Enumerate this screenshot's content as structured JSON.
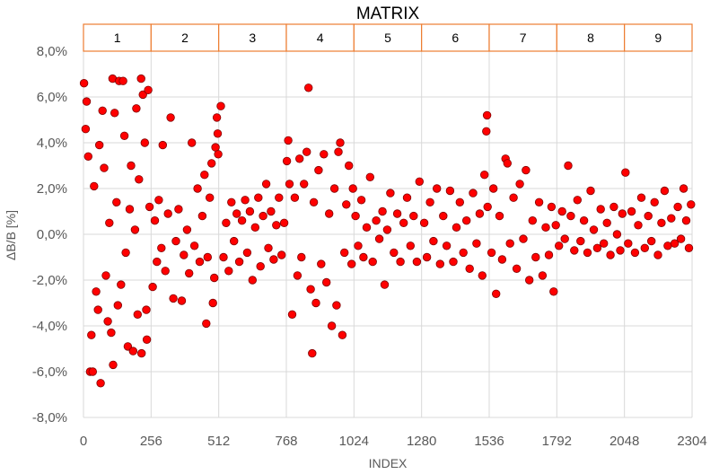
{
  "chart_data": {
    "type": "scatter",
    "title": "MATRIX",
    "xlabel": "INDEX",
    "ylabel": "ΔB/B [%]",
    "xlim": [
      0,
      2304
    ],
    "ylim": [
      -8,
      8
    ],
    "x_ticks": [
      0,
      256,
      512,
      768,
      1024,
      1280,
      1536,
      1792,
      2048,
      2304
    ],
    "x_tick_labels": [
      "0",
      "256",
      "512",
      "768",
      "1024",
      "1280",
      "1536",
      "1792",
      "2048",
      "2304"
    ],
    "y_ticks": [
      -8,
      -6,
      -4,
      -2,
      0,
      2,
      4,
      6,
      8
    ],
    "y_tick_labels": [
      "-8,0%",
      "-6,0%",
      "-4,0%",
      "-2,0%",
      "0,0%",
      "2,0%",
      "4,0%",
      "6,0%",
      "8,0%"
    ],
    "grid": true,
    "legend": "none",
    "segments": [
      {
        "label": "1",
        "x_start": 0,
        "x_end": 256
      },
      {
        "label": "2",
        "x_start": 256,
        "x_end": 512
      },
      {
        "label": "3",
        "x_start": 512,
        "x_end": 768
      },
      {
        "label": "4",
        "x_start": 768,
        "x_end": 1024
      },
      {
        "label": "5",
        "x_start": 1024,
        "x_end": 1280
      },
      {
        "label": "6",
        "x_start": 1280,
        "x_end": 1536
      },
      {
        "label": "7",
        "x_start": 1536,
        "x_end": 1792
      },
      {
        "label": "8",
        "x_start": 1792,
        "x_end": 2048
      },
      {
        "label": "9",
        "x_start": 2048,
        "x_end": 2304
      }
    ],
    "series": [
      {
        "marker_color": "#ff0000",
        "marker_edge_color": "#7f0000",
        "points": [
          [
            2,
            6.6
          ],
          [
            8,
            4.6
          ],
          [
            12,
            5.8
          ],
          [
            18,
            3.4
          ],
          [
            25,
            -6.0
          ],
          [
            30,
            -4.4
          ],
          [
            35,
            -6.0
          ],
          [
            40,
            2.1
          ],
          [
            48,
            -2.5
          ],
          [
            55,
            -3.3
          ],
          [
            60,
            3.9
          ],
          [
            65,
            -6.5
          ],
          [
            72,
            5.4
          ],
          [
            78,
            2.9
          ],
          [
            85,
            -1.8
          ],
          [
            92,
            -3.8
          ],
          [
            98,
            0.5
          ],
          [
            105,
            -4.3
          ],
          [
            110,
            6.8
          ],
          [
            112,
            -5.7
          ],
          [
            118,
            5.3
          ],
          [
            125,
            1.4
          ],
          [
            130,
            -3.1
          ],
          [
            135,
            6.7
          ],
          [
            142,
            -2.2
          ],
          [
            150,
            6.7
          ],
          [
            155,
            4.3
          ],
          [
            160,
            -0.8
          ],
          [
            168,
            -4.9
          ],
          [
            175,
            1.1
          ],
          [
            180,
            3.0
          ],
          [
            188,
            -5.1
          ],
          [
            195,
            0.2
          ],
          [
            200,
            5.5
          ],
          [
            205,
            -3.5
          ],
          [
            210,
            2.4
          ],
          [
            218,
            6.8
          ],
          [
            220,
            -5.2
          ],
          [
            225,
            6.1
          ],
          [
            232,
            4.0
          ],
          [
            238,
            -3.3
          ],
          [
            240,
            -4.6
          ],
          [
            245,
            6.3
          ],
          [
            250,
            1.2
          ],
          [
            262,
            -2.3
          ],
          [
            270,
            0.6
          ],
          [
            278,
            -1.2
          ],
          [
            285,
            1.5
          ],
          [
            295,
            -0.6
          ],
          [
            300,
            3.9
          ],
          [
            310,
            -1.6
          ],
          [
            320,
            0.9
          ],
          [
            330,
            5.1
          ],
          [
            340,
            -2.8
          ],
          [
            350,
            -0.3
          ],
          [
            360,
            1.1
          ],
          [
            372,
            -2.9
          ],
          [
            380,
            -0.9
          ],
          [
            392,
            0.2
          ],
          [
            400,
            -1.7
          ],
          [
            410,
            4.0
          ],
          [
            420,
            -0.5
          ],
          [
            432,
            2.0
          ],
          [
            440,
            -1.2
          ],
          [
            450,
            0.8
          ],
          [
            458,
            2.6
          ],
          [
            465,
            -3.9
          ],
          [
            470,
            -1.0
          ],
          [
            478,
            1.6
          ],
          [
            485,
            3.1
          ],
          [
            490,
            -3.0
          ],
          [
            495,
            -1.9
          ],
          [
            500,
            3.8
          ],
          [
            505,
            5.1
          ],
          [
            508,
            4.4
          ],
          [
            510,
            3.5
          ],
          [
            520,
            5.6
          ],
          [
            530,
            -1.0
          ],
          [
            540,
            0.5
          ],
          [
            550,
            -1.6
          ],
          [
            560,
            1.4
          ],
          [
            570,
            -0.3
          ],
          [
            580,
            0.9
          ],
          [
            590,
            -1.2
          ],
          [
            600,
            0.6
          ],
          [
            612,
            1.5
          ],
          [
            620,
            -0.8
          ],
          [
            630,
            1.0
          ],
          [
            640,
            -2.0
          ],
          [
            650,
            0.3
          ],
          [
            662,
            1.6
          ],
          [
            670,
            -1.4
          ],
          [
            680,
            0.8
          ],
          [
            692,
            2.2
          ],
          [
            700,
            -0.6
          ],
          [
            710,
            1.0
          ],
          [
            720,
            -1.1
          ],
          [
            730,
            0.4
          ],
          [
            740,
            1.6
          ],
          [
            750,
            -0.9
          ],
          [
            760,
            0.5
          ],
          [
            770,
            3.2
          ],
          [
            775,
            4.1
          ],
          [
            780,
            2.2
          ],
          [
            790,
            -3.5
          ],
          [
            800,
            1.6
          ],
          [
            810,
            -1.8
          ],
          [
            818,
            3.3
          ],
          [
            825,
            -1.0
          ],
          [
            835,
            2.2
          ],
          [
            845,
            3.6
          ],
          [
            852,
            6.4
          ],
          [
            860,
            -2.4
          ],
          [
            866,
            -5.2
          ],
          [
            872,
            1.4
          ],
          [
            880,
            -3.0
          ],
          [
            890,
            2.8
          ],
          [
            900,
            -1.3
          ],
          [
            910,
            3.5
          ],
          [
            920,
            -2.1
          ],
          [
            930,
            0.9
          ],
          [
            940,
            -4.0
          ],
          [
            950,
            2.0
          ],
          [
            958,
            -3.1
          ],
          [
            965,
            3.6
          ],
          [
            972,
            4.0
          ],
          [
            980,
            -4.4
          ],
          [
            988,
            -0.8
          ],
          [
            995,
            1.3
          ],
          [
            1005,
            3.0
          ],
          [
            1015,
            -1.3
          ],
          [
            1020,
            2.0
          ],
          [
            1030,
            0.8
          ],
          [
            1040,
            -0.5
          ],
          [
            1052,
            1.5
          ],
          [
            1060,
            -1.0
          ],
          [
            1072,
            0.3
          ],
          [
            1085,
            2.5
          ],
          [
            1095,
            -1.2
          ],
          [
            1108,
            0.6
          ],
          [
            1120,
            -0.2
          ],
          [
            1132,
            1.0
          ],
          [
            1140,
            -2.2
          ],
          [
            1150,
            0.2
          ],
          [
            1162,
            1.8
          ],
          [
            1175,
            -0.8
          ],
          [
            1188,
            0.9
          ],
          [
            1200,
            -1.2
          ],
          [
            1212,
            0.5
          ],
          [
            1225,
            1.6
          ],
          [
            1238,
            -0.5
          ],
          [
            1250,
            0.8
          ],
          [
            1262,
            -1.2
          ],
          [
            1272,
            2.3
          ],
          [
            1290,
            0.5
          ],
          [
            1300,
            -1.0
          ],
          [
            1312,
            1.4
          ],
          [
            1325,
            -0.3
          ],
          [
            1338,
            2.0
          ],
          [
            1350,
            -1.3
          ],
          [
            1362,
            0.8
          ],
          [
            1375,
            -0.5
          ],
          [
            1388,
            1.9
          ],
          [
            1400,
            -1.2
          ],
          [
            1412,
            0.3
          ],
          [
            1425,
            1.4
          ],
          [
            1438,
            -0.8
          ],
          [
            1450,
            0.6
          ],
          [
            1462,
            -1.5
          ],
          [
            1475,
            1.8
          ],
          [
            1488,
            -0.4
          ],
          [
            1500,
            0.9
          ],
          [
            1510,
            -1.8
          ],
          [
            1518,
            2.6
          ],
          [
            1525,
            4.5
          ],
          [
            1528,
            5.2
          ],
          [
            1530,
            1.2
          ],
          [
            1545,
            -0.8
          ],
          [
            1552,
            2.0
          ],
          [
            1562,
            -2.6
          ],
          [
            1575,
            0.8
          ],
          [
            1585,
            -1.1
          ],
          [
            1598,
            3.3
          ],
          [
            1605,
            3.1
          ],
          [
            1615,
            -0.4
          ],
          [
            1628,
            1.6
          ],
          [
            1640,
            -1.5
          ],
          [
            1652,
            2.2
          ],
          [
            1665,
            -0.2
          ],
          [
            1675,
            2.8
          ],
          [
            1688,
            -2.0
          ],
          [
            1700,
            0.6
          ],
          [
            1712,
            -1.0
          ],
          [
            1725,
            1.4
          ],
          [
            1738,
            -1.8
          ],
          [
            1750,
            0.3
          ],
          [
            1762,
            -0.9
          ],
          [
            1772,
            1.2
          ],
          [
            1780,
            -2.5
          ],
          [
            1788,
            0.4
          ],
          [
            1800,
            -0.5
          ],
          [
            1812,
            1.0
          ],
          [
            1822,
            -0.2
          ],
          [
            1835,
            3.0
          ],
          [
            1845,
            0.8
          ],
          [
            1858,
            -0.7
          ],
          [
            1870,
            1.5
          ],
          [
            1882,
            -0.3
          ],
          [
            1895,
            0.6
          ],
          [
            1908,
            -0.8
          ],
          [
            1920,
            1.9
          ],
          [
            1932,
            0.2
          ],
          [
            1945,
            -0.6
          ],
          [
            1958,
            1.1
          ],
          [
            1970,
            -0.4
          ],
          [
            1982,
            0.5
          ],
          [
            1995,
            -0.9
          ],
          [
            2008,
            1.2
          ],
          [
            2020,
            0.0
          ],
          [
            2032,
            -0.7
          ],
          [
            2040,
            0.9
          ],
          [
            2052,
            2.7
          ],
          [
            2062,
            -0.4
          ],
          [
            2075,
            1.0
          ],
          [
            2088,
            -0.8
          ],
          [
            2100,
            0.4
          ],
          [
            2112,
            1.6
          ],
          [
            2125,
            -0.6
          ],
          [
            2138,
            0.8
          ],
          [
            2150,
            -0.3
          ],
          [
            2162,
            1.4
          ],
          [
            2175,
            -0.9
          ],
          [
            2188,
            0.5
          ],
          [
            2200,
            1.9
          ],
          [
            2212,
            -0.5
          ],
          [
            2225,
            0.7
          ],
          [
            2238,
            -0.4
          ],
          [
            2250,
            1.2
          ],
          [
            2262,
            -0.2
          ],
          [
            2272,
            2.0
          ],
          [
            2282,
            0.6
          ],
          [
            2292,
            -0.6
          ],
          [
            2300,
            1.3
          ]
        ]
      }
    ]
  }
}
